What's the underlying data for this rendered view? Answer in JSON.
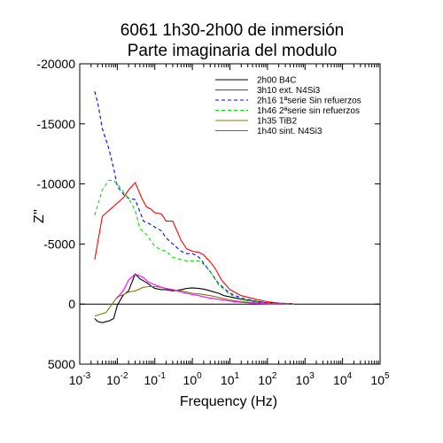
{
  "chart_data": {
    "type": "line",
    "title": "6061 1h30-2h00 de inmersión",
    "subtitle": "Parte imaginaria del modulo",
    "xlabel": "Frequency (Hz)",
    "ylabel": "Z''",
    "x_scale": "log",
    "xlim": [
      0.001,
      100000
    ],
    "ylim": [
      5000,
      -20000
    ],
    "y_inverted": true,
    "x_tick_labels": [
      "10-3",
      "10-2",
      "10-1",
      "100",
      "101",
      "102",
      "103",
      "104",
      "105"
    ],
    "y_ticks": [
      -20000,
      -15000,
      -10000,
      -5000,
      0,
      5000
    ],
    "y_tick_labels": [
      "-20000",
      "-15000",
      "-10000",
      "-5000",
      "0",
      "5000"
    ],
    "zero_line": true,
    "grid": false,
    "legend_position": "top-right",
    "series": [
      {
        "name": "2h00 B4C",
        "color": "#000000",
        "dash": "solid",
        "x": [
          0.0025,
          0.003,
          0.004,
          0.006,
          0.008,
          0.01,
          0.014,
          0.02,
          0.03,
          0.04,
          0.06,
          0.08,
          0.1,
          0.15,
          0.2,
          0.3,
          0.5,
          0.7,
          1,
          1.5,
          2,
          3,
          5,
          7,
          10,
          20,
          40,
          80,
          200,
          500
        ],
        "y": [
          1200,
          1450,
          1550,
          1400,
          1200,
          100,
          -700,
          -1100,
          -2500,
          -2100,
          -1800,
          -1500,
          -1300,
          -1200,
          -1200,
          -1100,
          -1200,
          -1300,
          -1350,
          -1300,
          -1250,
          -1100,
          -900,
          -700,
          -600,
          -400,
          -250,
          -120,
          -50,
          -20
        ]
      },
      {
        "name": "3h10 ext. N4Si3",
        "color": "#ff0000",
        "dash": "solid",
        "x": [
          0.0025,
          0.004,
          0.006,
          0.01,
          0.015,
          0.02,
          0.03,
          0.045,
          0.06,
          0.08,
          0.1,
          0.15,
          0.2,
          0.3,
          0.5,
          0.7,
          1,
          1.5,
          2,
          3,
          4,
          6,
          10,
          20,
          50,
          100,
          200,
          500
        ],
        "y": [
          -3700,
          -7300,
          -7800,
          -8400,
          -8900,
          -9500,
          -10100,
          -8800,
          -8100,
          -7900,
          -7600,
          -7500,
          -6900,
          -6900,
          -5300,
          -4600,
          -4400,
          -4300,
          -4100,
          -3500,
          -3000,
          -2000,
          -1200,
          -700,
          -400,
          -200,
          -80,
          -20
        ]
      },
      {
        "name": "2h16 1ªserie Sin refuerzos",
        "color": "#0000ff",
        "dash": "dashed",
        "x": [
          0.0025,
          0.003,
          0.004,
          0.006,
          0.008,
          0.01,
          0.015,
          0.02,
          0.03,
          0.05,
          0.07,
          0.1,
          0.15,
          0.2,
          0.3,
          0.5,
          0.7,
          1,
          1.5,
          2,
          3,
          5,
          10,
          20,
          50,
          100,
          200,
          500
        ],
        "y": [
          -17700,
          -16800,
          -14600,
          -12900,
          -11300,
          -9800,
          -9100,
          -8800,
          -8700,
          -6900,
          -6700,
          -6400,
          -6100,
          -5500,
          -5000,
          -4400,
          -4200,
          -4200,
          -3900,
          -3400,
          -2700,
          -1700,
          -900,
          -500,
          -250,
          -120,
          -50,
          -20
        ]
      },
      {
        "name": "1h46 2ªserie sin refuerzos",
        "color": "#00e000",
        "dash": "dashed",
        "x": [
          0.0025,
          0.004,
          0.006,
          0.008,
          0.01,
          0.015,
          0.02,
          0.03,
          0.04,
          0.06,
          0.1,
          0.15,
          0.2,
          0.3,
          0.5,
          0.7,
          1,
          1.5,
          2,
          3,
          5,
          10,
          20,
          50,
          100,
          200,
          500
        ],
        "y": [
          -7400,
          -9500,
          -10300,
          -10300,
          -10000,
          -9300,
          -8800,
          -7800,
          -6300,
          -5800,
          -4800,
          -4500,
          -4400,
          -3900,
          -3700,
          -3600,
          -3600,
          -3600,
          -3300,
          -2700,
          -1600,
          -800,
          -400,
          -200,
          -100,
          -40,
          -10
        ]
      },
      {
        "name": "1h35 TiB2",
        "color": "#808000",
        "dash": "solid",
        "x": [
          0.0025,
          0.005,
          0.01,
          0.015,
          0.02,
          0.03,
          0.05,
          0.07,
          0.1,
          0.15,
          0.2,
          0.3,
          0.5,
          0.7,
          1,
          1.5,
          2,
          3,
          5,
          10,
          20,
          50,
          100,
          300
        ],
        "y": [
          1000,
          700,
          -600,
          -800,
          -1000,
          -1100,
          -1400,
          -1450,
          -1450,
          -1400,
          -1300,
          -1200,
          -1100,
          -1000,
          -900,
          -850,
          -800,
          -700,
          -550,
          -350,
          -200,
          -100,
          -50,
          -10
        ]
      },
      {
        "name": "1h40 sint. N4Si3",
        "color": "#ff00ff",
        "dash": "solid",
        "x": [
          0.01,
          0.015,
          0.02,
          0.03,
          0.05,
          0.07,
          0.1,
          0.15,
          0.2,
          0.3,
          0.5,
          0.7,
          1,
          1.5,
          2,
          3,
          5,
          10,
          20,
          50,
          100,
          300
        ],
        "y": [
          -500,
          -1200,
          -2000,
          -2500,
          -2200,
          -1800,
          -1600,
          -1400,
          -1300,
          -1200,
          -1000,
          -900,
          -800,
          -700,
          -600,
          -500,
          -400,
          -250,
          -150,
          -60,
          -20,
          -5
        ]
      }
    ]
  }
}
